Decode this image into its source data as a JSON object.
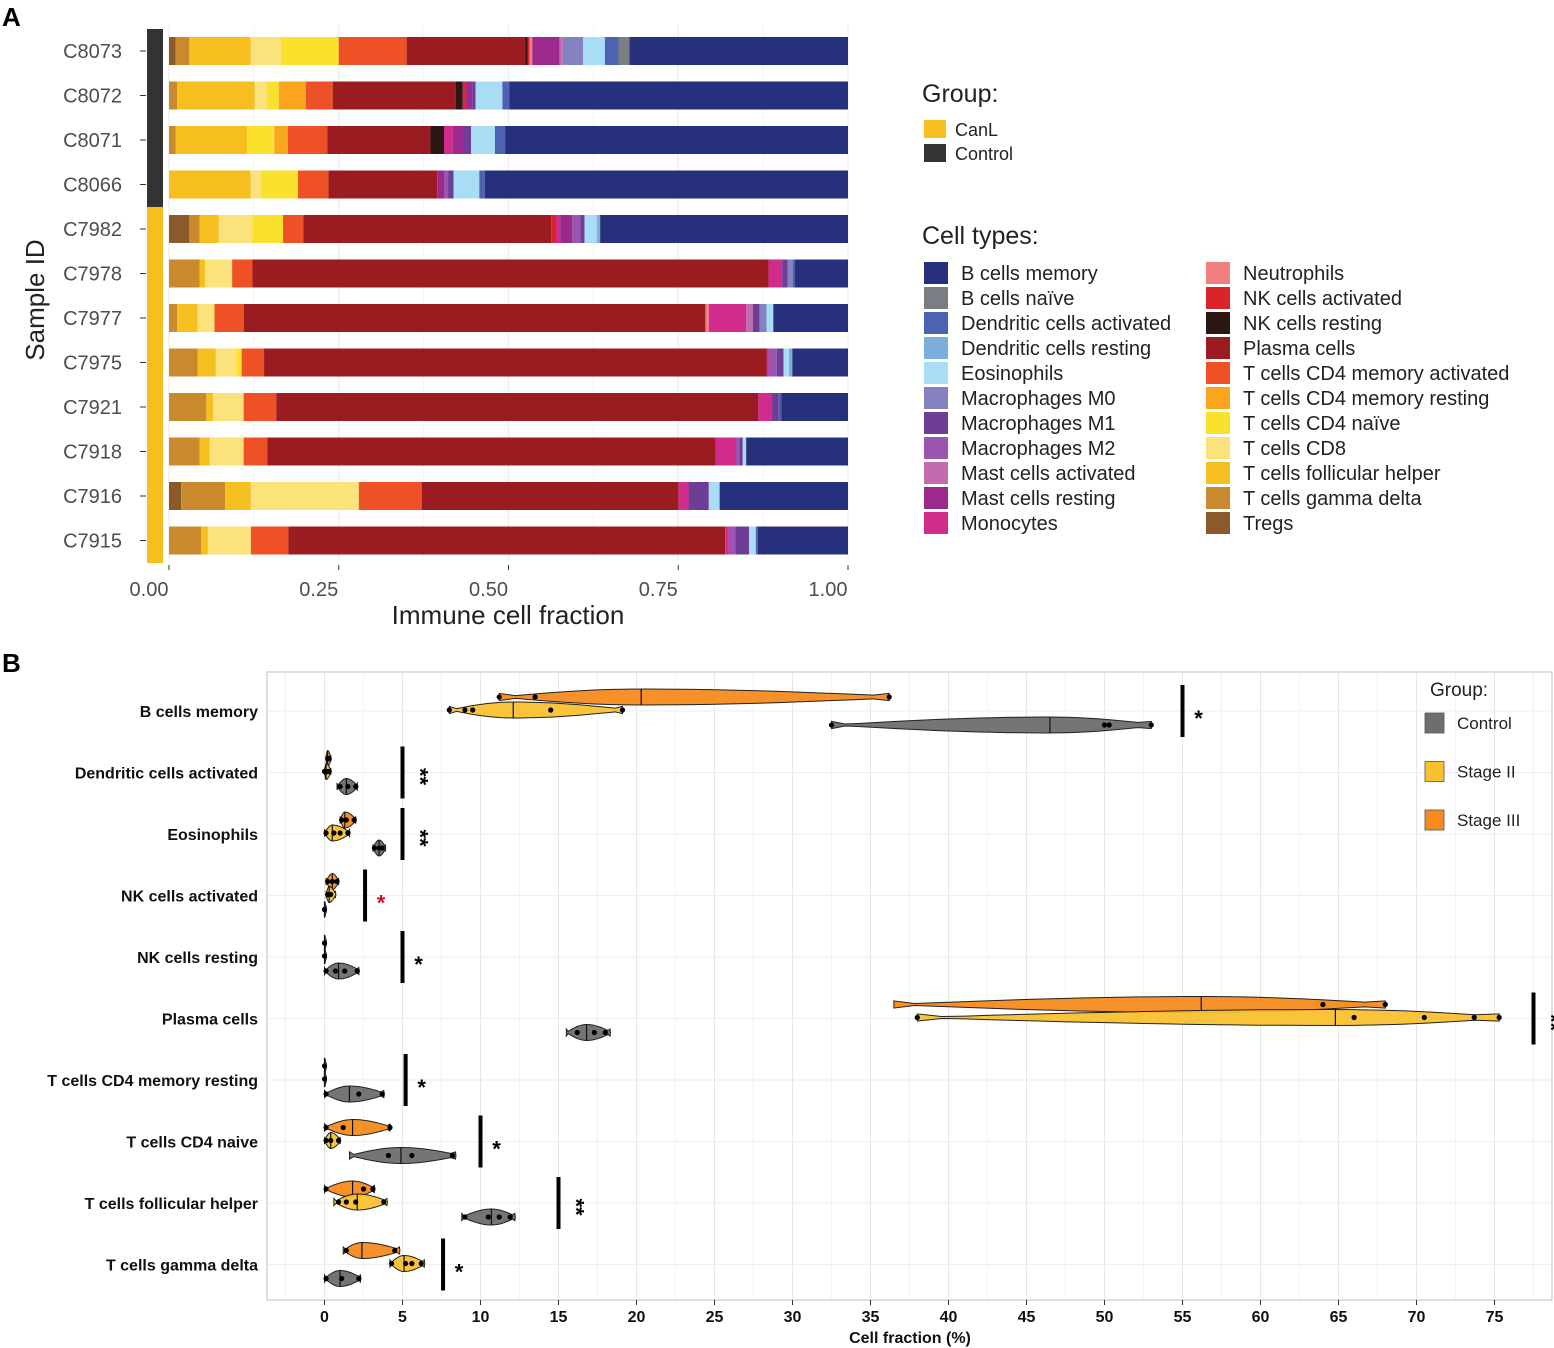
{
  "panels": {
    "a_label": "A",
    "b_label": "B"
  },
  "chart_data": [
    {
      "panel": "A",
      "type": "bar",
      "orientation": "horizontal",
      "stacked": true,
      "xlabel": "Immune cell fraction",
      "ylabel": "Sample ID",
      "xlim": [
        0,
        1
      ],
      "xticks": [
        "0.00",
        "0.25",
        "0.50",
        "0.75",
        "1.00"
      ],
      "groups_title": "Group:",
      "groups": [
        {
          "name": "CanL",
          "color": "#F6BE1E"
        },
        {
          "name": "Control",
          "color": "#333333"
        }
      ],
      "cell_types_title": "Cell types:",
      "cell_types": [
        {
          "name": "Tregs",
          "color": "#8B5A2B"
        },
        {
          "name": "T cells gamma delta",
          "color": "#C98A2E"
        },
        {
          "name": "T cells follicular helper",
          "color": "#F6BE1E"
        },
        {
          "name": "T cells CD8",
          "color": "#FBE27A"
        },
        {
          "name": "T cells CD4 naïve",
          "color": "#F9E12D"
        },
        {
          "name": "T cells CD4 memory resting",
          "color": "#F9A61E"
        },
        {
          "name": "T cells CD4 memory activated",
          "color": "#EF5127"
        },
        {
          "name": "Plasma cells",
          "color": "#9B1C20"
        },
        {
          "name": "NK cells resting",
          "color": "#2B1614"
        },
        {
          "name": "NK cells activated",
          "color": "#D9252A"
        },
        {
          "name": "Neutrophils",
          "color": "#F08080"
        },
        {
          "name": "Monocytes",
          "color": "#D12B8C"
        },
        {
          "name": "Mast cells resting",
          "color": "#9B2A8C"
        },
        {
          "name": "Mast cells activated",
          "color": "#C26BB0"
        },
        {
          "name": "Macrophages M2",
          "color": "#9955B0"
        },
        {
          "name": "Macrophages M1",
          "color": "#6E3E96"
        },
        {
          "name": "Macrophages M0",
          "color": "#8582C2"
        },
        {
          "name": "Eosinophils",
          "color": "#A9DDF5"
        },
        {
          "name": "Dendritic cells resting",
          "color": "#7BAEDD"
        },
        {
          "name": "Dendritic cells activated",
          "color": "#4B63B1"
        },
        {
          "name": "B cells naïve",
          "color": "#7A7D83"
        },
        {
          "name": "B cells memory",
          "color": "#27307A"
        }
      ],
      "samples": [
        {
          "id": "C8073",
          "group": "Control",
          "fractions": {
            "Tregs": 0.01,
            "T cells gamma delta": 0.02,
            "T cells follicular helper": 0.09,
            "T cells CD8": 0.045,
            "T cells CD4 naïve": 0.085,
            "T cells CD4 memory activated": 0.1,
            "Plasma cells": 0.175,
            "NK cells resting": 0.003,
            "NK cells activated": 0.003,
            "Neutrophils": 0.004,
            "Mast cells activated": 0.005,
            "Mast cells resting": 0.04,
            "Macrophages M0": 0.03,
            "Eosinophils": 0.032,
            "Dendritic cells activated": 0.02,
            "B cells naïve": 0.016,
            "B cells memory": 0.322
          }
        },
        {
          "id": "C8072",
          "group": "Control",
          "fractions": {
            "T cells gamma delta": 0.012,
            "T cells follicular helper": 0.115,
            "T cells CD8": 0.018,
            "T cells CD4 naïve": 0.018,
            "T cells CD4 memory resting": 0.04,
            "T cells CD4 memory activated": 0.04,
            "Plasma cells": 0.183,
            "NK cells resting": 0.01,
            "NK cells activated": 0.004,
            "Mast cells resting": 0.01,
            "Macrophages M1": 0.005,
            "Eosinophils": 0.04,
            "Dendritic cells activated": 0.01,
            "B cells memory": 0.503
          }
        },
        {
          "id": "C8071",
          "group": "Control",
          "fractions": {
            "T cells gamma delta": 0.01,
            "T cells follicular helper": 0.105,
            "T cells CD4 naïve": 0.04,
            "T cells CD4 memory resting": 0.02,
            "T cells CD4 memory activated": 0.058,
            "Plasma cells": 0.152,
            "NK cells resting": 0.02,
            "Monocytes": 0.013,
            "Mast cells resting": 0.015,
            "Macrophages M1": 0.012,
            "Eosinophils": 0.035,
            "Dendritic cells activated": 0.015,
            "B cells memory": 0.505
          }
        },
        {
          "id": "C8066",
          "group": "Control",
          "fractions": {
            "T cells follicular helper": 0.12,
            "T cells CD8": 0.015,
            "T cells CD4 naïve": 0.055,
            "T cells CD4 memory activated": 0.045,
            "Plasma cells": 0.16,
            "Mast cells resting": 0.01,
            "Macrophages M2": 0.006,
            "Macrophages M1": 0.008,
            "Eosinophils": 0.038,
            "Dendritic cells activated": 0.008,
            "B cells memory": 0.535
          }
        },
        {
          "id": "C7982",
          "group": "CanL",
          "fractions": {
            "Tregs": 0.03,
            "T cells gamma delta": 0.015,
            "T cells follicular helper": 0.028,
            "T cells CD8": 0.05,
            "T cells CD4 naïve": 0.045,
            "T cells CD4 memory activated": 0.03,
            "Plasma cells": 0.365,
            "NK cells activated": 0.007,
            "Monocytes": 0.006,
            "Mast cells resting": 0.018,
            "Macrophages M2": 0.012,
            "Macrophages M1": 0.006,
            "Eosinophils": 0.018,
            "Dendritic cells resting": 0.005,
            "B cells memory": 0.365
          }
        },
        {
          "id": "C7978",
          "group": "CanL",
          "fractions": {
            "T cells gamma delta": 0.045,
            "T cells follicular helper": 0.008,
            "T cells CD8": 0.04,
            "T cells CD4 memory activated": 0.03,
            "Plasma cells": 0.76,
            "Monocytes": 0.02,
            "Macrophages M1": 0.008,
            "Macrophages M0": 0.008,
            "Dendritic cells activated": 0.003,
            "B cells memory": 0.078
          }
        },
        {
          "id": "C7977",
          "group": "CanL",
          "fractions": {
            "T cells gamma delta": 0.012,
            "T cells follicular helper": 0.03,
            "T cells CD8": 0.025,
            "T cells CD4 memory activated": 0.043,
            "Plasma cells": 0.68,
            "Neutrophils": 0.005,
            "Monocytes": 0.055,
            "Mast cells activated": 0.01,
            "Macrophages M1": 0.01,
            "Macrophages M0": 0.01,
            "Eosinophils": 0.01,
            "B cells memory": 0.11
          }
        },
        {
          "id": "C7975",
          "group": "CanL",
          "fractions": {
            "T cells gamma delta": 0.042,
            "T cells follicular helper": 0.027,
            "T cells CD8": 0.03,
            "T cells CD4 naïve": 0.008,
            "T cells CD4 memory activated": 0.033,
            "Plasma cells": 0.74,
            "Monocytes": 0.003,
            "Macrophages M2": 0.012,
            "Macrophages M1": 0.01,
            "Eosinophils": 0.008,
            "Dendritic cells resting": 0.005,
            "B cells memory": 0.082
          }
        },
        {
          "id": "C7921",
          "group": "CanL",
          "fractions": {
            "T cells gamma delta": 0.055,
            "T cells follicular helper": 0.01,
            "T cells CD8": 0.045,
            "T cells CD4 memory activated": 0.048,
            "Plasma cells": 0.71,
            "Monocytes": 0.02,
            "Macrophages M1": 0.01,
            "Dendritic cells activated": 0.004,
            "B cells memory": 0.098
          }
        },
        {
          "id": "C7918",
          "group": "CanL",
          "fractions": {
            "T cells gamma delta": 0.045,
            "T cells follicular helper": 0.015,
            "T cells CD8": 0.05,
            "T cells CD4 memory activated": 0.035,
            "Plasma cells": 0.66,
            "Monocytes": 0.03,
            "Macrophages M2": 0.005,
            "Macrophages M1": 0.005,
            "Eosinophils": 0.005,
            "B cells memory": 0.15
          }
        },
        {
          "id": "C7916",
          "group": "CanL",
          "fractions": {
            "Tregs": 0.018,
            "T cells gamma delta": 0.065,
            "T cells follicular helper": 0.038,
            "T cells CD8": 0.16,
            "T cells CD4 memory activated": 0.093,
            "Plasma cells": 0.38,
            "Monocytes": 0.015,
            "Macrophages M1": 0.03,
            "Eosinophils": 0.016,
            "B cells memory": 0.19
          }
        },
        {
          "id": "C7915",
          "group": "CanL",
          "fractions": {
            "T cells gamma delta": 0.047,
            "T cells CD8": 0.063,
            "T cells follicular helper": 0.01,
            "T cells CD4 memory activated": 0.055,
            "Plasma cells": 0.64,
            "Monocytes": 0.005,
            "Macrophages M2": 0.01,
            "Macrophages M1": 0.02,
            "Eosinophils": 0.01,
            "Dendritic cells activated": 0.003,
            "B cells memory": 0.132
          }
        }
      ]
    },
    {
      "panel": "B",
      "type": "violin",
      "xlabel": "Cell fraction (%)",
      "xlim": [
        -3.5,
        79.5
      ],
      "xticks": [
        0,
        5,
        10,
        15,
        20,
        25,
        30,
        35,
        40,
        45,
        50,
        55,
        60,
        65,
        70,
        75
      ],
      "legend_title": "Group:",
      "groups": [
        {
          "name": "Control",
          "color": "#6E6E6E"
        },
        {
          "name": "Stage II",
          "color": "#F9C12E"
        },
        {
          "name": "Stage III",
          "color": "#F68A1E"
        }
      ],
      "categories": [
        {
          "name": "B cells memory",
          "sig": "*",
          "sig_x": 55,
          "violins": [
            {
              "group": "Stage III",
              "min": 11.2,
              "max": 36.2,
              "median": 20.3,
              "points": [
                11.2,
                13.5,
                36.2
              ]
            },
            {
              "group": "Stage II",
              "min": 8.0,
              "max": 19.1,
              "median": 12.1,
              "points": [
                8.0,
                9.0,
                9.5,
                14.5,
                19.1
              ]
            },
            {
              "group": "Control",
              "min": 32.5,
              "max": 53.0,
              "median": 46.5,
              "points": [
                32.5,
                50.0,
                50.3,
                53.0
              ]
            }
          ]
        },
        {
          "name": "Dendritic cells activated",
          "sig": "**",
          "sig_x": 5,
          "violins": [
            {
              "group": "Stage III",
              "min": 0.1,
              "max": 0.4,
              "median": 0.2,
              "points": [
                0.2,
                0.3
              ]
            },
            {
              "group": "Stage II",
              "min": 0.0,
              "max": 0.4,
              "median": 0.1,
              "points": [
                0.0,
                0.1,
                0.2,
                0.3
              ]
            },
            {
              "group": "Control",
              "min": 0.8,
              "max": 2.1,
              "median": 1.4,
              "points": [
                1.0,
                1.5,
                2.0
              ]
            }
          ]
        },
        {
          "name": "Eosinophils",
          "sig": "**",
          "sig_x": 5,
          "violins": [
            {
              "group": "Stage III",
              "min": 1.0,
              "max": 2.0,
              "median": 1.3,
              "points": [
                1.1,
                1.4,
                1.9
              ]
            },
            {
              "group": "Stage II",
              "min": 0.0,
              "max": 1.6,
              "median": 0.5,
              "points": [
                0.1,
                0.6,
                1.0,
                1.5
              ]
            },
            {
              "group": "Control",
              "min": 3.1,
              "max": 3.9,
              "median": 3.5,
              "points": [
                3.2,
                3.5,
                3.7
              ]
            }
          ]
        },
        {
          "name": "NK cells activated",
          "sig": "*",
          "sig_color": "#C8102E",
          "sig_x": 2.6,
          "violins": [
            {
              "group": "Stage III",
              "min": 0.1,
              "max": 0.9,
              "median": 0.5,
              "points": [
                0.2,
                0.5,
                0.8
              ]
            },
            {
              "group": "Stage II",
              "min": 0.1,
              "max": 0.7,
              "median": 0.3,
              "points": [
                0.2,
                0.4
              ]
            },
            {
              "group": "Control",
              "min": 0.0,
              "max": 0.1,
              "median": 0.0,
              "points": [
                0.0,
                0.0
              ]
            }
          ]
        },
        {
          "name": "NK cells resting",
          "sig": "*",
          "sig_x": 5,
          "violins": [
            {
              "group": "Stage III",
              "min": 0.0,
              "max": 0.1,
              "median": 0.0,
              "points": [
                0.0
              ]
            },
            {
              "group": "Stage II",
              "min": 0.0,
              "max": 0.1,
              "median": 0.0,
              "points": [
                0.0
              ]
            },
            {
              "group": "Control",
              "min": 0.0,
              "max": 2.2,
              "median": 0.9,
              "points": [
                0.1,
                0.7,
                1.3,
                2.1
              ]
            }
          ]
        },
        {
          "name": "Plasma cells",
          "sig": "**",
          "sig_x": 77.5,
          "violins": [
            {
              "group": "Stage III",
              "min": 36.5,
              "max": 68.0,
              "median": 56.2,
              "points": [
                64.0,
                68.0
              ]
            },
            {
              "group": "Stage II",
              "min": 38.0,
              "max": 75.3,
              "median": 64.8,
              "points": [
                38.0,
                66.0,
                70.5,
                73.7,
                75.3
              ]
            },
            {
              "group": "Control",
              "min": 15.5,
              "max": 18.3,
              "median": 16.8,
              "points": [
                16.2,
                17.3,
                18.0
              ]
            }
          ]
        },
        {
          "name": "T cells CD4 memory resting",
          "sig": "*",
          "sig_x": 5.2,
          "violins": [
            {
              "group": "Stage III",
              "min": 0.0,
              "max": 0.1,
              "median": 0.0,
              "points": [
                0.0
              ]
            },
            {
              "group": "Stage II",
              "min": 0.0,
              "max": 0.1,
              "median": 0.0,
              "points": [
                0.0
              ]
            },
            {
              "group": "Control",
              "min": 0.0,
              "max": 3.8,
              "median": 1.6,
              "points": [
                0.1,
                2.2,
                3.7
              ]
            }
          ]
        },
        {
          "name": "T cells CD4 naive",
          "sig": "*",
          "sig_x": 10,
          "violins": [
            {
              "group": "Stage III",
              "min": 0.0,
              "max": 4.2,
              "median": 1.8,
              "points": [
                0.1,
                1.2,
                4.2
              ]
            },
            {
              "group": "Stage II",
              "min": 0.0,
              "max": 1.0,
              "median": 0.4,
              "points": [
                0.1,
                0.4,
                0.9
              ]
            },
            {
              "group": "Control",
              "min": 1.6,
              "max": 8.4,
              "median": 4.9,
              "points": [
                4.1,
                5.6,
                8.2
              ]
            }
          ]
        },
        {
          "name": "T cells follicular helper",
          "sig": "**",
          "sig_x": 15,
          "violins": [
            {
              "group": "Stage III",
              "min": 0.0,
              "max": 3.2,
              "median": 1.8,
              "points": [
                0.1,
                2.5,
                3.1
              ]
            },
            {
              "group": "Stage II",
              "min": 0.6,
              "max": 4.0,
              "median": 2.1,
              "points": [
                0.9,
                1.4,
                2.0,
                3.8
              ]
            },
            {
              "group": "Control",
              "min": 8.8,
              "max": 12.2,
              "median": 10.7,
              "points": [
                9.0,
                10.5,
                11.2,
                11.9
              ]
            }
          ]
        },
        {
          "name": "T cells gamma delta",
          "sig": "*",
          "sig_x": 7.6,
          "violins": [
            {
              "group": "Stage III",
              "min": 1.2,
              "max": 4.8,
              "median": 2.4,
              "points": [
                1.4,
                4.5
              ]
            },
            {
              "group": "Stage II",
              "min": 4.2,
              "max": 6.4,
              "median": 5.1,
              "points": [
                4.3,
                5.2,
                5.6,
                6.2
              ]
            },
            {
              "group": "Control",
              "min": 0.0,
              "max": 2.3,
              "median": 1.0,
              "points": [
                0.1,
                1.1,
                2.2
              ]
            }
          ]
        }
      ]
    }
  ]
}
